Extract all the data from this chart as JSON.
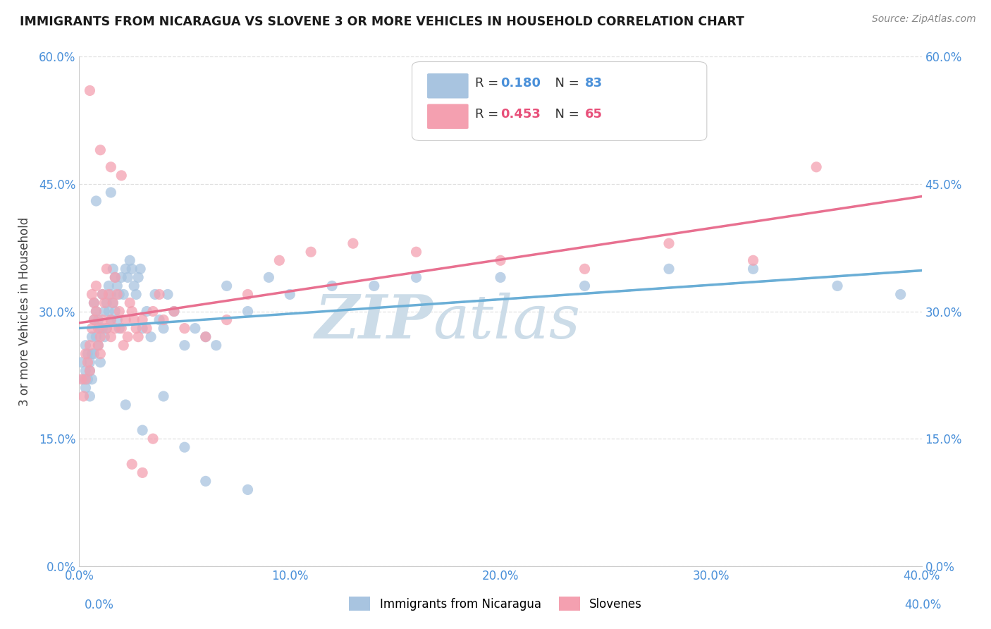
{
  "title": "IMMIGRANTS FROM NICARAGUA VS SLOVENE 3 OR MORE VEHICLES IN HOUSEHOLD CORRELATION CHART",
  "source": "Source: ZipAtlas.com",
  "ylabel": "3 or more Vehicles in Household",
  "xlim": [
    0.0,
    0.4
  ],
  "ylim": [
    0.0,
    0.6
  ],
  "xticks": [
    0.0,
    0.1,
    0.2,
    0.3,
    0.4
  ],
  "yticks": [
    0.0,
    0.15,
    0.3,
    0.45,
    0.6
  ],
  "xticklabels": [
    "0.0%",
    "10.0%",
    "20.0%",
    "30.0%",
    "40.0%"
  ],
  "yticklabels": [
    "0.0%",
    "15.0%",
    "30.0%",
    "45.0%",
    "60.0%"
  ],
  "r1": 0.18,
  "n1": 83,
  "r2": 0.453,
  "n2": 65,
  "color_blue": "#a8c4e0",
  "color_pink": "#f4a0b0",
  "color_blue_text": "#4a90d9",
  "color_pink_text": "#e8507a",
  "color_blue_line": "#6aaed6",
  "color_pink_line": "#e87090",
  "color_dashed": "#9dc4d8",
  "watermark_color": "#ccdce8",
  "background_color": "#ffffff",
  "grid_color": "#dddddd",
  "blue_scatter_x": [
    0.001,
    0.002,
    0.003,
    0.003,
    0.003,
    0.004,
    0.004,
    0.005,
    0.005,
    0.005,
    0.006,
    0.006,
    0.006,
    0.007,
    0.007,
    0.007,
    0.008,
    0.008,
    0.009,
    0.009,
    0.01,
    0.01,
    0.011,
    0.011,
    0.012,
    0.012,
    0.013,
    0.013,
    0.014,
    0.014,
    0.015,
    0.015,
    0.016,
    0.016,
    0.017,
    0.017,
    0.018,
    0.018,
    0.019,
    0.019,
    0.02,
    0.021,
    0.022,
    0.023,
    0.024,
    0.025,
    0.026,
    0.027,
    0.028,
    0.029,
    0.03,
    0.032,
    0.034,
    0.036,
    0.038,
    0.04,
    0.042,
    0.045,
    0.05,
    0.055,
    0.06,
    0.065,
    0.07,
    0.08,
    0.09,
    0.1,
    0.12,
    0.14,
    0.16,
    0.2,
    0.24,
    0.28,
    0.32,
    0.36,
    0.39,
    0.008,
    0.015,
    0.022,
    0.03,
    0.04,
    0.05,
    0.06,
    0.08
  ],
  "blue_scatter_y": [
    0.24,
    0.22,
    0.26,
    0.23,
    0.21,
    0.25,
    0.22,
    0.24,
    0.23,
    0.2,
    0.27,
    0.25,
    0.22,
    0.31,
    0.29,
    0.25,
    0.3,
    0.27,
    0.29,
    0.26,
    0.28,
    0.24,
    0.32,
    0.28,
    0.3,
    0.27,
    0.31,
    0.28,
    0.33,
    0.3,
    0.32,
    0.29,
    0.35,
    0.31,
    0.34,
    0.3,
    0.33,
    0.29,
    0.32,
    0.28,
    0.34,
    0.32,
    0.35,
    0.34,
    0.36,
    0.35,
    0.33,
    0.32,
    0.34,
    0.35,
    0.28,
    0.3,
    0.27,
    0.32,
    0.29,
    0.28,
    0.32,
    0.3,
    0.26,
    0.28,
    0.27,
    0.26,
    0.33,
    0.3,
    0.34,
    0.32,
    0.33,
    0.33,
    0.34,
    0.34,
    0.33,
    0.35,
    0.35,
    0.33,
    0.32,
    0.43,
    0.44,
    0.19,
    0.16,
    0.2,
    0.14,
    0.1,
    0.09
  ],
  "pink_scatter_x": [
    0.001,
    0.002,
    0.003,
    0.003,
    0.004,
    0.005,
    0.005,
    0.006,
    0.006,
    0.007,
    0.007,
    0.008,
    0.008,
    0.009,
    0.009,
    0.01,
    0.01,
    0.011,
    0.011,
    0.012,
    0.013,
    0.013,
    0.014,
    0.015,
    0.015,
    0.016,
    0.017,
    0.017,
    0.018,
    0.019,
    0.02,
    0.021,
    0.022,
    0.023,
    0.024,
    0.025,
    0.026,
    0.027,
    0.028,
    0.03,
    0.032,
    0.035,
    0.038,
    0.04,
    0.045,
    0.05,
    0.06,
    0.07,
    0.08,
    0.095,
    0.11,
    0.13,
    0.16,
    0.2,
    0.24,
    0.28,
    0.32,
    0.35,
    0.005,
    0.01,
    0.015,
    0.02,
    0.025,
    0.03,
    0.035
  ],
  "pink_scatter_y": [
    0.22,
    0.2,
    0.25,
    0.22,
    0.24,
    0.26,
    0.23,
    0.32,
    0.28,
    0.31,
    0.29,
    0.33,
    0.3,
    0.28,
    0.26,
    0.25,
    0.27,
    0.32,
    0.29,
    0.31,
    0.28,
    0.35,
    0.32,
    0.29,
    0.27,
    0.31,
    0.28,
    0.34,
    0.32,
    0.3,
    0.28,
    0.26,
    0.29,
    0.27,
    0.31,
    0.3,
    0.29,
    0.28,
    0.27,
    0.29,
    0.28,
    0.3,
    0.32,
    0.29,
    0.3,
    0.28,
    0.27,
    0.29,
    0.32,
    0.36,
    0.37,
    0.38,
    0.37,
    0.36,
    0.35,
    0.38,
    0.36,
    0.47,
    0.56,
    0.49,
    0.47,
    0.46,
    0.12,
    0.11,
    0.15
  ]
}
